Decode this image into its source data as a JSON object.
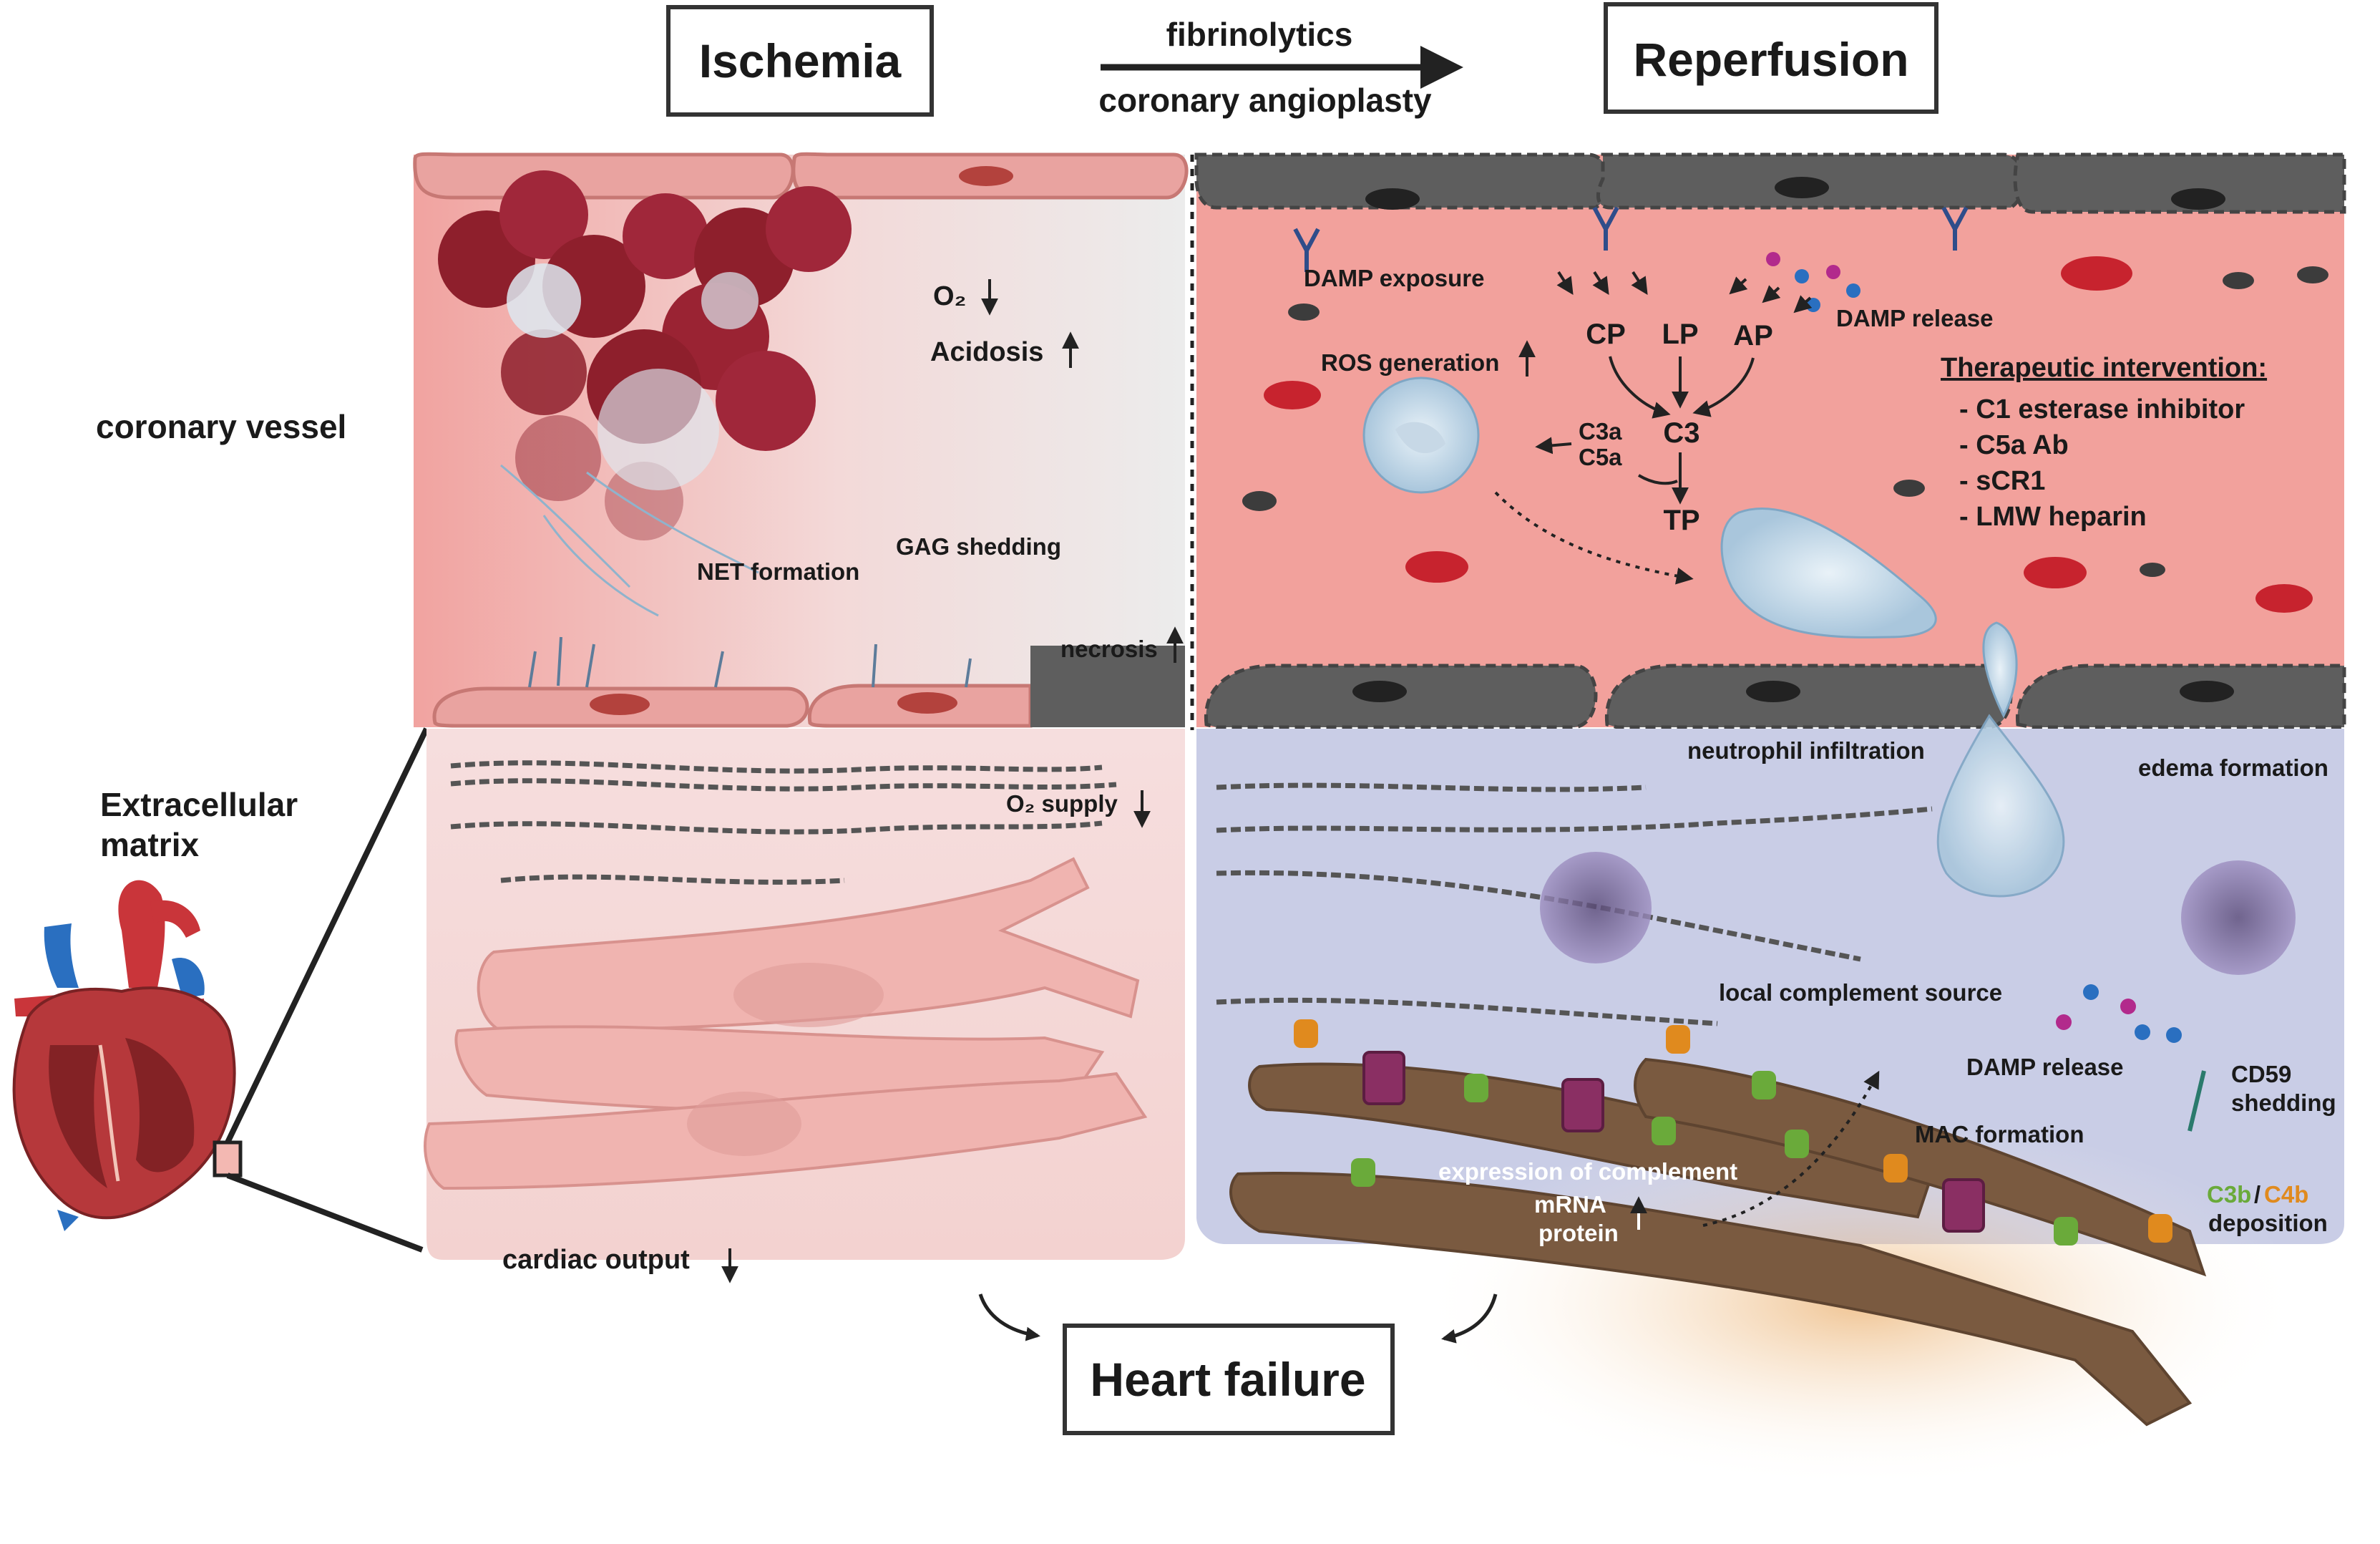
{
  "headers": {
    "ischemia": "Ischemia",
    "reperfusion": "Reperfusion",
    "heart_failure": "Heart failure"
  },
  "transition": {
    "top": "fibrinolytics",
    "bottom": "coronary angioplasty"
  },
  "side_labels": {
    "coronary_vessel": "coronary vessel",
    "ecm_line1": "Extracellular",
    "ecm_line2": "matrix"
  },
  "ischemia_vessel": {
    "o2": "O₂",
    "acidosis": "Acidosis",
    "net_formation": "NET formation",
    "gag_shedding": "GAG shedding",
    "necrosis": "necrosis"
  },
  "ischemia_tissue": {
    "o2_supply": "O₂  supply",
    "cardiac_output": "cardiac output"
  },
  "reperfusion_vessel": {
    "damp_exposure": "DAMP exposure",
    "damp_release": "DAMP release",
    "ros_generation": "ROS generation",
    "cp": "CP",
    "lp": "LP",
    "ap": "AP",
    "c3": "C3",
    "c3a": "C3a",
    "c5a": "C5a",
    "tp": "TP",
    "neutrophil_infiltration": "neutrophil infiltration",
    "edema_formation": "edema formation"
  },
  "therapy": {
    "title": "Therapeutic intervention:",
    "items": [
      "- C1 esterase inhibitor",
      "- C5a Ab",
      "- sCR1",
      "- LMW heparin"
    ]
  },
  "reperfusion_tissue": {
    "local_source": "local complement source",
    "damp_release": "DAMP release",
    "cd59_1": "CD59",
    "cd59_2": "shedding",
    "mac_formation": "MAC formation",
    "expression": "expression of complement",
    "mrna": "mRNA",
    "protein": "protein",
    "c3b": "C3b",
    "slash": "/",
    "c4b": "C4b",
    "deposition": "deposition"
  },
  "colors": {
    "c3b": "#6aaa3a",
    "c4b": "#e08a1e",
    "vessel_pink": "#f4a9a4",
    "tissue_blue": "#c9cde6",
    "necrotic_gray": "#5e5e5e"
  }
}
